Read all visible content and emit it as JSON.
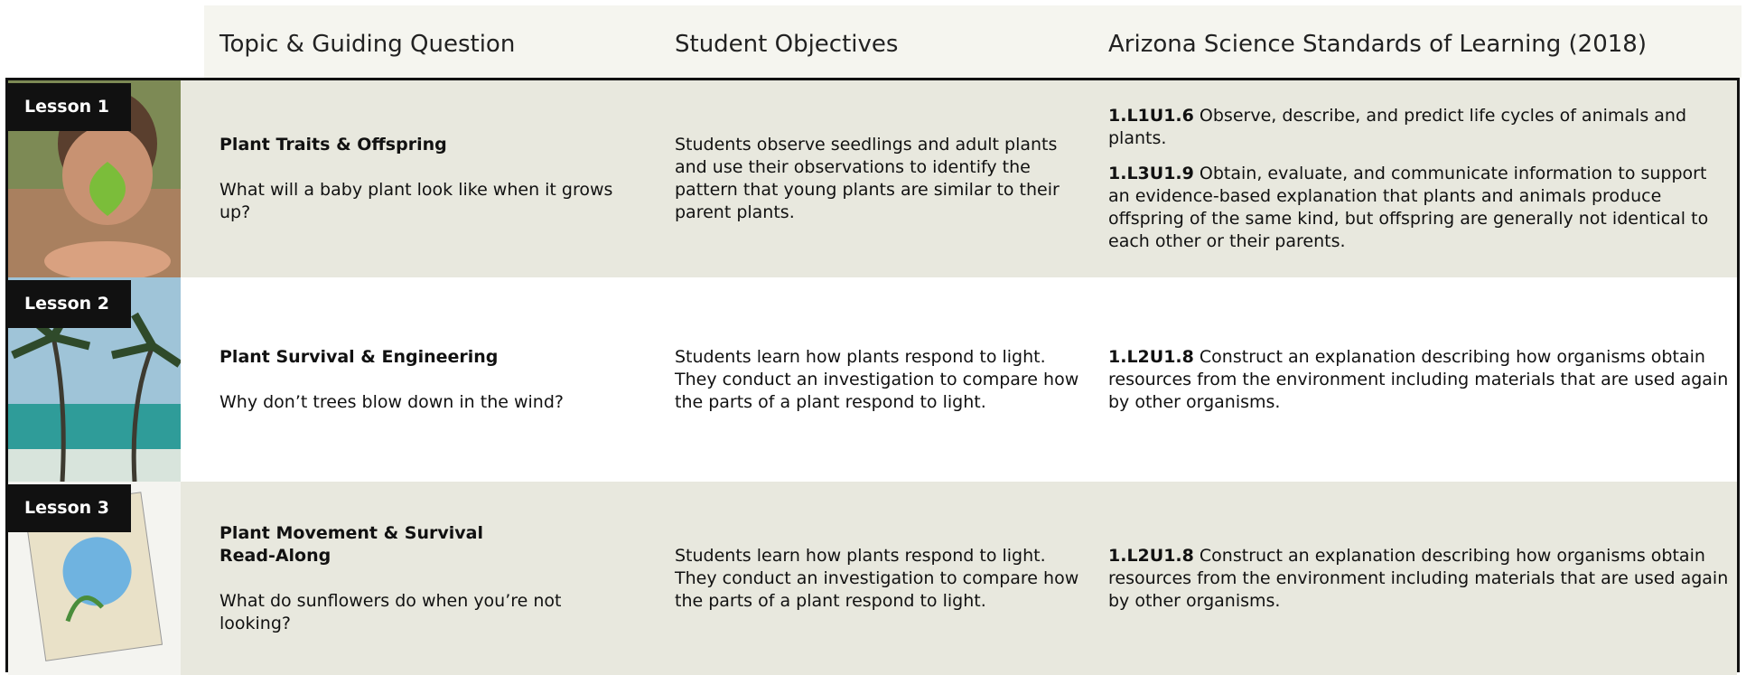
{
  "header": {
    "columns": [
      "Topic & Guiding Question",
      "Student Objectives",
      "Arizona Science Standards of Learning (2018)"
    ]
  },
  "lessons": [
    {
      "label": "Lesson 1",
      "topic": "Plant Traits & Offspring",
      "question": "What will a baby plant look like when it grows up?",
      "objectives": "Students observe seedlings and adult plants and use their observations to identify the pattern that young plants are similar to their parent plants.",
      "standards": [
        {
          "code": "1.L1U1.6",
          "text": "Observe, describe, and predict life cycles of animals and plants."
        },
        {
          "code": "1.L3U1.9",
          "text": "Obtain, evaluate, and communicate information to support an evidence-based explanation that plants and animals produce offspring of the same kind, but offspring are generally not identical to each other or their parents."
        }
      ]
    },
    {
      "label": "Lesson 2",
      "topic": "Plant Survival & Engineering",
      "question": "Why don’t trees blow down in the wind?",
      "objectives": "Students learn how plants respond to light. They conduct an investigation to compare how the parts of a plant respond to light.",
      "standards": [
        {
          "code": "1.L2U1.8",
          "text": "Construct an explanation describing how organisms obtain resources from the environment including materials that are used again by other organisms."
        }
      ]
    },
    {
      "label": "Lesson 3",
      "topic": "Plant Movement & Survival Read-Along",
      "question": "What do sunflowers do when you’re not looking?",
      "objectives": "Students learn how plants respond to light. They conduct an investigation to compare how the parts of a plant respond to light.",
      "standards": [
        {
          "code": "1.L2U1.8",
          "text": "Construct an explanation describing how organisms obtain resources from the environment including materials that are used again by other organisms."
        }
      ]
    }
  ]
}
